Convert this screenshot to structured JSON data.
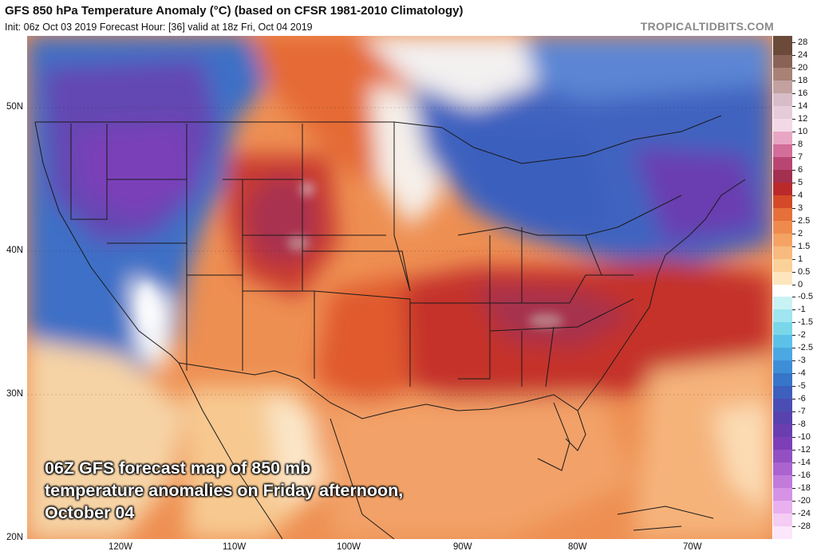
{
  "header": {
    "title": "GFS 850 hPa Temperature Anomaly (°C) (based on CFSR 1981-2010 Climatology)",
    "subtitle": "Init: 06z Oct 03 2019   Forecast Hour: [36]   valid at 18z Fri, Oct 04 2019",
    "brand": "TROPICALTIDBITS.COM"
  },
  "caption": {
    "text": "06Z GFS forecast map of 850 mb temperature anomalies on Friday afternoon, October 04"
  },
  "axes": {
    "lat_labels": [
      "50N",
      "40N",
      "30N",
      "20N"
    ],
    "lon_labels": [
      "120W",
      "110W",
      "100W",
      "90W",
      "80W",
      "70W"
    ]
  },
  "colorbar": {
    "labels": [
      "28",
      "24",
      "20",
      "18",
      "16",
      "14",
      "12",
      "10",
      "8",
      "7",
      "6",
      "5",
      "4",
      "3",
      "2.5",
      "2",
      "1.5",
      "1",
      "0.5",
      "0",
      "-0.5",
      "-1",
      "-1.5",
      "-2",
      "-2.5",
      "-3",
      "-4",
      "-5",
      "-6",
      "-7",
      "-8",
      "-10",
      "-12",
      "-14",
      "-16",
      "-18",
      "-20",
      "-24",
      "-28"
    ],
    "colors": [
      "#6b4a3a",
      "#8a6356",
      "#a98275",
      "#c2a1a0",
      "#d8bcc8",
      "#e6ccd9",
      "#f2d9e5",
      "#e9a6c4",
      "#d36d9a",
      "#b94672",
      "#a3304f",
      "#ba2a2b",
      "#d44a28",
      "#e6703a",
      "#ef8a4d",
      "#f4a364",
      "#f8ba7e",
      "#fbd19a",
      "#fde6bd",
      "#ffffff",
      "#c9f2f4",
      "#9fe6f0",
      "#7ad7ea",
      "#5cc1e8",
      "#4ba8e2",
      "#3d8ed6",
      "#3675c8",
      "#3d5fbd",
      "#4a4eb4",
      "#5843ae",
      "#6a3eb0",
      "#7d3fb7",
      "#9350c2",
      "#ab63cf",
      "#c27adb",
      "#d693e5",
      "#e8b0ef",
      "#f4ccf4",
      "#fbe6fb"
    ]
  }
}
